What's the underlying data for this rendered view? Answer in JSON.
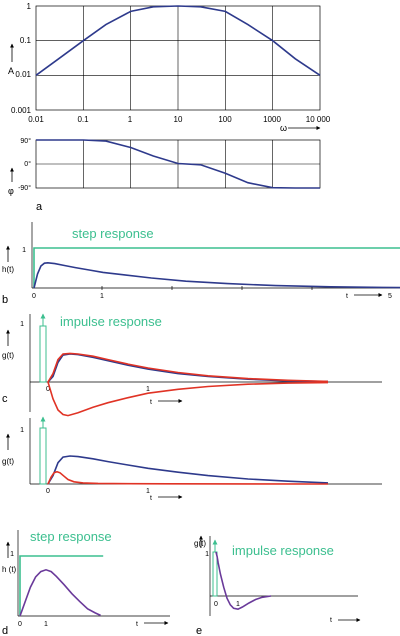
{
  "colors": {
    "blue": "#2e3a8c",
    "red": "#e03325",
    "green": "#3cbf8f",
    "purple": "#6a3a9a",
    "axis": "#000000"
  },
  "chart_data": [
    {
      "id": "a-magnitude",
      "type": "line",
      "yscale": "log",
      "xscale": "log",
      "xlim": [
        0.01,
        10000
      ],
      "ylim": [
        0.001,
        1
      ],
      "x_ticks": [
        "0.01",
        "0.1",
        "1",
        "10",
        "100",
        "1000",
        "10 000"
      ],
      "y_ticks": [
        "1",
        "0.1",
        "0.01",
        "0.001"
      ],
      "ylabel": "A",
      "xlabel": "ω",
      "grid": true,
      "series": [
        {
          "color": "#2e3a8c",
          "x": [
            0.01,
            0.03,
            0.1,
            0.3,
            1,
            3,
            10,
            30,
            100,
            300,
            1000,
            3000,
            10000
          ],
          "y": [
            0.01,
            0.03,
            0.1,
            0.29,
            0.7,
            0.95,
            1.0,
            0.95,
            0.7,
            0.29,
            0.1,
            0.03,
            0.01
          ]
        }
      ]
    },
    {
      "id": "a-phase",
      "type": "line",
      "xscale": "log",
      "xlim": [
        0.01,
        10000
      ],
      "ylim": [
        -90,
        90
      ],
      "y_ticks": [
        "90°",
        "0°",
        "-90°"
      ],
      "ylabel": "φ",
      "grid": true,
      "label": "a",
      "series": [
        {
          "color": "#2e3a8c",
          "x": [
            0.01,
            0.1,
            0.3,
            1,
            3,
            10,
            30,
            100,
            300,
            1000,
            3000,
            10000
          ],
          "y": [
            90,
            90,
            86,
            62,
            30,
            2,
            -3,
            -35,
            -70,
            -89,
            -90,
            -90
          ]
        }
      ]
    },
    {
      "id": "b-step",
      "type": "line",
      "xlim": [
        0,
        5.3
      ],
      "ylim": [
        0,
        1.2
      ],
      "title": "step response",
      "ylabel": "h(t)",
      "xlabel": "t",
      "label": "b",
      "x_ticks": [
        "0",
        "1",
        "5"
      ],
      "y_ticks": [
        "1"
      ],
      "series": [
        {
          "color": "#3cbf8f",
          "x": [
            0,
            0,
            5.3
          ],
          "y": [
            0,
            1,
            1
          ]
        },
        {
          "color": "#2e3a8c",
          "x": [
            0,
            0.05,
            0.1,
            0.15,
            0.2,
            0.3,
            0.45,
            0.6,
            0.8,
            1,
            1.3,
            1.7,
            2.2,
            2.8,
            3.5,
            4.3,
            5.3
          ],
          "y": [
            0,
            0.35,
            0.55,
            0.62,
            0.63,
            0.61,
            0.56,
            0.51,
            0.45,
            0.39,
            0.33,
            0.25,
            0.17,
            0.11,
            0.06,
            0.03,
            0.01
          ]
        }
      ]
    },
    {
      "id": "c-impulse",
      "type": "line",
      "xlim": [
        -0.2,
        2.8
      ],
      "ylim": [
        -1,
        1.1
      ],
      "title": "impulse response",
      "ylabel": "g(t)",
      "xlabel": "t",
      "label": "c",
      "x_ticks": [
        "0",
        "1"
      ],
      "y_ticks": [
        "1"
      ],
      "series": [
        {
          "color": "#2e3a8c",
          "x": [
            0,
            0.05,
            0.1,
            0.15,
            0.22,
            0.3,
            0.45,
            0.6,
            0.8,
            1,
            1.3,
            1.6,
            2,
            2.4,
            2.8
          ],
          "y": [
            0,
            0.1,
            0.35,
            0.48,
            0.5,
            0.49,
            0.44,
            0.38,
            0.3,
            0.23,
            0.15,
            0.1,
            0.05,
            0.02,
            0.01
          ]
        },
        {
          "color": "#e03325",
          "x": [
            0,
            0.05,
            0.1,
            0.15,
            0.22,
            0.3,
            0.45,
            0.6,
            0.8,
            1,
            1.3,
            1.6,
            2,
            2.4,
            2.8
          ],
          "y": [
            0,
            0.15,
            0.4,
            0.5,
            0.51,
            0.5,
            0.46,
            0.4,
            0.32,
            0.25,
            0.17,
            0.11,
            0.06,
            0.03,
            0.01
          ]
        },
        {
          "color": "#e03325",
          "x": [
            0,
            0.05,
            0.1,
            0.15,
            0.2,
            0.3,
            0.45,
            0.6,
            0.8,
            1,
            1.3,
            1.6,
            2,
            2.4,
            2.8
          ],
          "y": [
            0,
            -0.3,
            -0.5,
            -0.58,
            -0.6,
            -0.55,
            -0.45,
            -0.37,
            -0.28,
            -0.2,
            -0.13,
            -0.08,
            -0.04,
            -0.02,
            -0.01
          ]
        }
      ]
    },
    {
      "id": "c2-impulse",
      "type": "line",
      "xlim": [
        -0.2,
        2.8
      ],
      "ylim": [
        0,
        1.1
      ],
      "ylabel": "g(t)",
      "xlabel": "t",
      "x_ticks": [
        "0",
        "1"
      ],
      "y_ticks": [
        "1"
      ],
      "series": [
        {
          "color": "#2e3a8c",
          "x": [
            0,
            0.05,
            0.1,
            0.15,
            0.22,
            0.3,
            0.45,
            0.6,
            0.8,
            1,
            1.3,
            1.6,
            2,
            2.4,
            2.8
          ],
          "y": [
            0,
            0.15,
            0.38,
            0.48,
            0.5,
            0.49,
            0.45,
            0.4,
            0.34,
            0.28,
            0.21,
            0.15,
            0.09,
            0.05,
            0.02
          ]
        },
        {
          "color": "#e03325",
          "x": [
            0,
            0.03,
            0.06,
            0.09,
            0.12,
            0.16,
            0.2,
            0.26,
            0.35,
            0.5,
            0.8,
            1.2,
            2,
            2.8
          ],
          "y": [
            0,
            0.12,
            0.2,
            0.22,
            0.2,
            0.14,
            0.08,
            0.04,
            0.02,
            0.01,
            0.005,
            0.003,
            0.001,
            0
          ]
        }
      ]
    },
    {
      "id": "d-step",
      "type": "line",
      "xlim": [
        0,
        3.2
      ],
      "ylim": [
        0,
        1.2
      ],
      "title": "step response",
      "ylabel": "h (t)",
      "xlabel": "t",
      "label": "d",
      "x_ticks": [
        "0",
        "1"
      ],
      "y_ticks": [
        "1"
      ],
      "series": [
        {
          "color": "#3cbf8f",
          "x": [
            0,
            0,
            3.2
          ],
          "y": [
            0,
            1,
            1
          ]
        },
        {
          "color": "#6a3a9a",
          "x": [
            0,
            0.1,
            0.25,
            0.4,
            0.6,
            0.8,
            1,
            1.2,
            1.4,
            1.7,
            2,
            2.3,
            2.6,
            2.9,
            3.1
          ],
          "y": [
            0,
            0.12,
            0.3,
            0.48,
            0.65,
            0.74,
            0.77,
            0.74,
            0.66,
            0.52,
            0.37,
            0.24,
            0.12,
            0.05,
            0.01
          ]
        }
      ]
    },
    {
      "id": "e-impulse",
      "type": "line",
      "xlim": [
        -0.15,
        2.5
      ],
      "ylim": [
        -0.6,
        1.2
      ],
      "title": "impulse response",
      "ylabel": "g(t)",
      "xlabel": "t",
      "label": "e",
      "x_ticks": [
        "0",
        "1"
      ],
      "y_ticks": [
        "1"
      ],
      "series": [
        {
          "color": "#6a3a9a",
          "x": [
            0,
            0.05,
            0.1,
            0.2,
            0.35,
            0.5,
            0.65,
            0.8,
            1,
            1.2,
            1.5,
            1.8,
            2.1,
            2.5
          ],
          "y": [
            1,
            0.9,
            0.75,
            0.5,
            0.2,
            -0.05,
            -0.2,
            -0.28,
            -0.3,
            -0.25,
            -0.16,
            -0.08,
            -0.03,
            0
          ]
        }
      ]
    }
  ]
}
